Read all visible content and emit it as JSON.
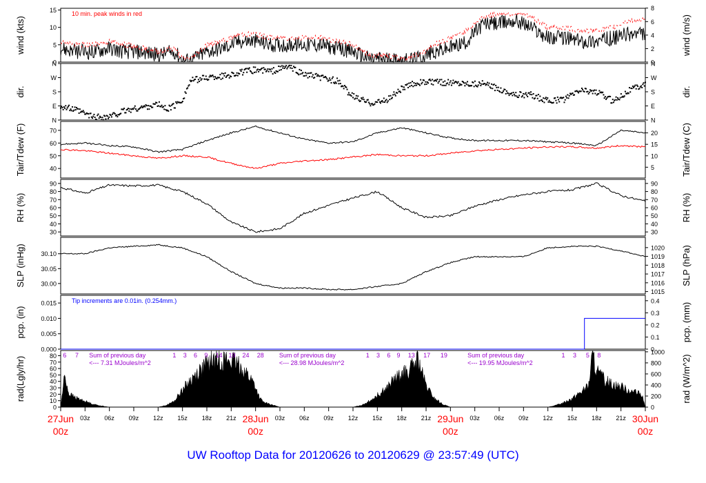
{
  "footer_title": "UW Rooftop Data for 20120626  to  20120629 @ 23:57:49  (UTC)",
  "colors": {
    "black": "#000000",
    "red": "#ff0000",
    "blue": "#0000ff",
    "purple": "#9900cc"
  },
  "chart_data": [
    {
      "id": "wind",
      "type": "line",
      "ylabel_left": "wind (kts)",
      "ylabel_right": "wind (m/s)",
      "yticks_left": [
        "0",
        "5",
        "10",
        "15"
      ],
      "yticks_right": [
        "0",
        "2",
        "4",
        "6",
        "8"
      ],
      "ylim": [
        0,
        15.5
      ],
      "annotation": "10 min. peak winds in red",
      "series": [
        {
          "color": "#000000",
          "x": [
            0,
            2,
            4,
            6,
            8,
            10,
            12,
            14,
            15,
            16,
            18,
            20,
            22,
            24,
            26,
            28,
            30,
            32,
            34,
            36,
            38,
            40,
            42,
            44,
            46,
            48,
            50,
            52,
            54,
            56,
            58,
            60,
            62,
            64,
            66,
            68,
            70,
            72
          ],
          "values": [
            4,
            3,
            3,
            4,
            3,
            3,
            2,
            3,
            0.5,
            0.5,
            3,
            4,
            6,
            6,
            5,
            5,
            5,
            5,
            4,
            3,
            1,
            1,
            0.5,
            1,
            3,
            4,
            6,
            11,
            11,
            12,
            10,
            7,
            7,
            6,
            6,
            7,
            8,
            8
          ]
        },
        {
          "color": "#ff0000",
          "x": [
            0,
            2,
            4,
            6,
            8,
            10,
            12,
            14,
            15,
            16,
            18,
            20,
            22,
            24,
            26,
            28,
            30,
            32,
            34,
            36,
            38,
            40,
            42,
            44,
            46,
            48,
            50,
            52,
            54,
            56,
            58,
            60,
            62,
            64,
            66,
            68,
            70,
            72
          ],
          "values": [
            6,
            5,
            5,
            6,
            5,
            4,
            3,
            4,
            1,
            1,
            5,
            6,
            8,
            8,
            7,
            7,
            7,
            7,
            6,
            5,
            2,
            2,
            1,
            2,
            5,
            7,
            9,
            13,
            14,
            14,
            13,
            10,
            10,
            9,
            9,
            10,
            12,
            12
          ]
        }
      ]
    },
    {
      "id": "dir",
      "type": "scatter",
      "ylabel_left": "dir.",
      "ylabel_right": "dir.",
      "yticks_left": [
        "N",
        "E",
        "S",
        "W",
        "N"
      ],
      "yticks_right": [
        "N",
        "E",
        "S",
        "W",
        "N"
      ],
      "ylim": [
        0,
        360
      ],
      "x": [
        0,
        2,
        4,
        6,
        8,
        10,
        12,
        13,
        14,
        15,
        16,
        18,
        20,
        22,
        24,
        26,
        28,
        30,
        32,
        34,
        36,
        38,
        40,
        42,
        44,
        46,
        48,
        50,
        52,
        54,
        56,
        58,
        60,
        62,
        64,
        66,
        68,
        70,
        72
      ],
      "values": [
        90,
        60,
        20,
        20,
        60,
        80,
        100,
        70,
        90,
        130,
        250,
        270,
        280,
        300,
        320,
        310,
        340,
        290,
        270,
        250,
        150,
        110,
        120,
        200,
        240,
        240,
        240,
        235,
        230,
        200,
        160,
        160,
        120,
        130,
        190,
        180,
        120,
        190,
        230
      ]
    },
    {
      "id": "temp",
      "type": "line",
      "ylabel_left": "Tair/Tdew (F)",
      "ylabel_right": "Tair/Tdew (C)",
      "yticks_left": [
        "40",
        "50",
        "60",
        "70"
      ],
      "yticks_right": [
        "5",
        "10",
        "15",
        "20"
      ],
      "ylim": [
        32.5,
        77
      ],
      "series": [
        {
          "name": "Tair",
          "color": "#000000",
          "x": [
            0,
            3,
            6,
            9,
            12,
            15,
            18,
            21,
            24,
            27,
            30,
            33,
            36,
            39,
            42,
            45,
            48,
            51,
            54,
            57,
            60,
            63,
            66,
            69,
            72
          ],
          "values": [
            59,
            60,
            58,
            57,
            53,
            55,
            62,
            68,
            73,
            68,
            63,
            60,
            61,
            68,
            72,
            68,
            64,
            62,
            62,
            62,
            61,
            60,
            58,
            70,
            68
          ]
        },
        {
          "name": "Tdew",
          "color": "#ff0000",
          "x": [
            0,
            3,
            6,
            9,
            12,
            15,
            18,
            21,
            24,
            27,
            30,
            33,
            36,
            39,
            42,
            45,
            48,
            51,
            54,
            57,
            60,
            63,
            66,
            69,
            72
          ],
          "values": [
            55,
            54,
            52,
            50,
            48,
            50,
            49,
            44,
            40,
            44,
            46,
            47,
            49,
            51,
            50,
            50,
            52,
            54,
            55,
            56,
            57,
            57,
            56,
            58,
            57
          ]
        }
      ]
    },
    {
      "id": "rh",
      "type": "line",
      "ylabel_left": "RH (%)",
      "ylabel_right": "RH (%)",
      "yticks_left": [
        "30",
        "40",
        "50",
        "60",
        "70",
        "80",
        "90"
      ],
      "yticks_right": [
        "30",
        "40",
        "50",
        "60",
        "70",
        "80",
        "90"
      ],
      "ylim": [
        25,
        95
      ],
      "series": [
        {
          "color": "#000000",
          "x": [
            0,
            3,
            6,
            9,
            12,
            15,
            18,
            21,
            24,
            27,
            30,
            33,
            36,
            39,
            42,
            45,
            48,
            51,
            54,
            57,
            60,
            63,
            66,
            69,
            72
          ],
          "values": [
            85,
            78,
            88,
            87,
            88,
            80,
            65,
            42,
            30,
            34,
            53,
            63,
            72,
            80,
            60,
            48,
            50,
            62,
            70,
            76,
            80,
            82,
            90,
            75,
            68
          ]
        }
      ]
    },
    {
      "id": "slp",
      "type": "line",
      "ylabel_left": "SLP (inHg)",
      "ylabel_right": "SLP (hPa)",
      "yticks_left": [
        "30.00",
        "30.05",
        "30.10"
      ],
      "yticks_right": [
        "1015",
        "1016",
        "1017",
        "1018",
        "1019",
        "1020"
      ],
      "ylim": [
        29.965,
        30.155
      ],
      "series": [
        {
          "color": "#000000",
          "x": [
            0,
            3,
            6,
            9,
            12,
            15,
            18,
            21,
            24,
            27,
            30,
            33,
            36,
            39,
            42,
            45,
            48,
            51,
            54,
            57,
            60,
            63,
            66,
            69,
            72
          ],
          "values": [
            30.1,
            30.1,
            30.12,
            30.125,
            30.13,
            30.12,
            30.09,
            30.04,
            30.0,
            29.985,
            29.985,
            29.98,
            29.98,
            29.99,
            30.0,
            30.04,
            30.07,
            30.09,
            30.09,
            30.09,
            30.12,
            30.125,
            30.125,
            30.11,
            30.09
          ]
        }
      ]
    },
    {
      "id": "pcp",
      "type": "line",
      "ylabel_left": "pcp. (in)",
      "ylabel_right": "pcp. (mm)",
      "yticks_left": [
        "0.000",
        "0.005",
        "0.010",
        "0.015"
      ],
      "yticks_right": [
        "0",
        "0.1",
        "0.2",
        "0.3",
        "0.4"
      ],
      "ylim": [
        0,
        0.0175
      ],
      "annotation": "Tip increments are 0.01in. (0.254mm.)",
      "series": [
        {
          "color": "#0000ff",
          "x": [
            0,
            64.5,
            64.5,
            72
          ],
          "values": [
            0,
            0,
            0.01,
            0.01
          ]
        }
      ]
    },
    {
      "id": "rad",
      "type": "area",
      "ylabel_left": "rad(Lgly/hr)",
      "ylabel_right": "rad (W/m^2)",
      "yticks_left": [
        "0",
        "10",
        "20",
        "30",
        "40",
        "50",
        "60",
        "70",
        "80"
      ],
      "yticks_right": [
        "0",
        "200",
        "400",
        "600",
        "800",
        "1000"
      ],
      "ylim": [
        0,
        88
      ],
      "x_tick_labels": [
        "03z",
        "06z",
        "09z",
        "12z",
        "15z",
        "18z",
        "21z",
        "00z",
        "03z",
        "06z",
        "09z",
        "12z",
        "15z",
        "18z",
        "21z",
        "00z",
        "03z",
        "06z",
        "09z",
        "12z",
        "15z",
        "18z",
        "21z",
        "00z"
      ],
      "date_labels": [
        {
          "line1": "27Jun",
          "line2": "00z",
          "x": 0
        },
        {
          "line1": "28Jun",
          "line2": "00z",
          "x": 24
        },
        {
          "line1": "29Jun",
          "line2": "00z",
          "x": 48
        },
        {
          "line1": "30Jun",
          "line2": "00z",
          "x": 72
        }
      ],
      "hour_markers": [
        {
          "x": 0.5,
          "label": "6"
        },
        {
          "x": 2,
          "label": "7"
        },
        {
          "x": 14,
          "label": "1"
        },
        {
          "x": 15.3,
          "label": "3"
        },
        {
          "x": 16.6,
          "label": "6"
        },
        {
          "x": 17.9,
          "label": "9"
        },
        {
          "x": 19.5,
          "label": "14"
        },
        {
          "x": 21.1,
          "label": "19"
        },
        {
          "x": 22.8,
          "label": "24"
        },
        {
          "x": 24.6,
          "label": "28"
        },
        {
          "x": 37.8,
          "label": "1"
        },
        {
          "x": 39.1,
          "label": "3"
        },
        {
          "x": 40.4,
          "label": "6"
        },
        {
          "x": 41.6,
          "label": "9"
        },
        {
          "x": 43.2,
          "label": "13"
        },
        {
          "x": 45.1,
          "label": "17"
        },
        {
          "x": 47.2,
          "label": "19"
        },
        {
          "x": 61.9,
          "label": "1"
        },
        {
          "x": 63.3,
          "label": "3"
        },
        {
          "x": 64.9,
          "label": "5"
        },
        {
          "x": 66.3,
          "label": "8"
        }
      ],
      "daily_sums": [
        {
          "x": 3.5,
          "line1": "Sum of previous day",
          "line2": "<--- 7.31 MJoules/m^2"
        },
        {
          "x": 26.9,
          "line1": "Sum of previous day",
          "line2": "<--- 28.98 MJoules/m^2"
        },
        {
          "x": 50.1,
          "line1": "Sum of previous day",
          "line2": "<--- 19.95 MJoules/m^2"
        }
      ],
      "series": [
        {
          "color": "#000000",
          "x": [
            0,
            0.5,
            1,
            2,
            3,
            4,
            5,
            6,
            12,
            13,
            14,
            15,
            16,
            17,
            18,
            19,
            20,
            21,
            22,
            23,
            23.8,
            24.5,
            25,
            26,
            27,
            36,
            37,
            38,
            39,
            40,
            41,
            42,
            43,
            44,
            45,
            46,
            46.5,
            47,
            48,
            60,
            61,
            62,
            63,
            64,
            65,
            65.5,
            66,
            67,
            71.6,
            72
          ],
          "values": [
            0,
            55,
            22,
            15,
            10,
            5,
            2,
            0,
            0,
            3,
            10,
            30,
            45,
            60,
            72,
            80,
            80,
            78,
            70,
            55,
            40,
            15,
            8,
            4,
            0,
            0,
            3,
            10,
            20,
            30,
            45,
            55,
            62,
            80,
            35,
            15,
            10,
            5,
            0,
            0,
            3,
            8,
            15,
            25,
            35,
            90,
            60,
            45,
            20,
            0
          ]
        }
      ]
    }
  ]
}
